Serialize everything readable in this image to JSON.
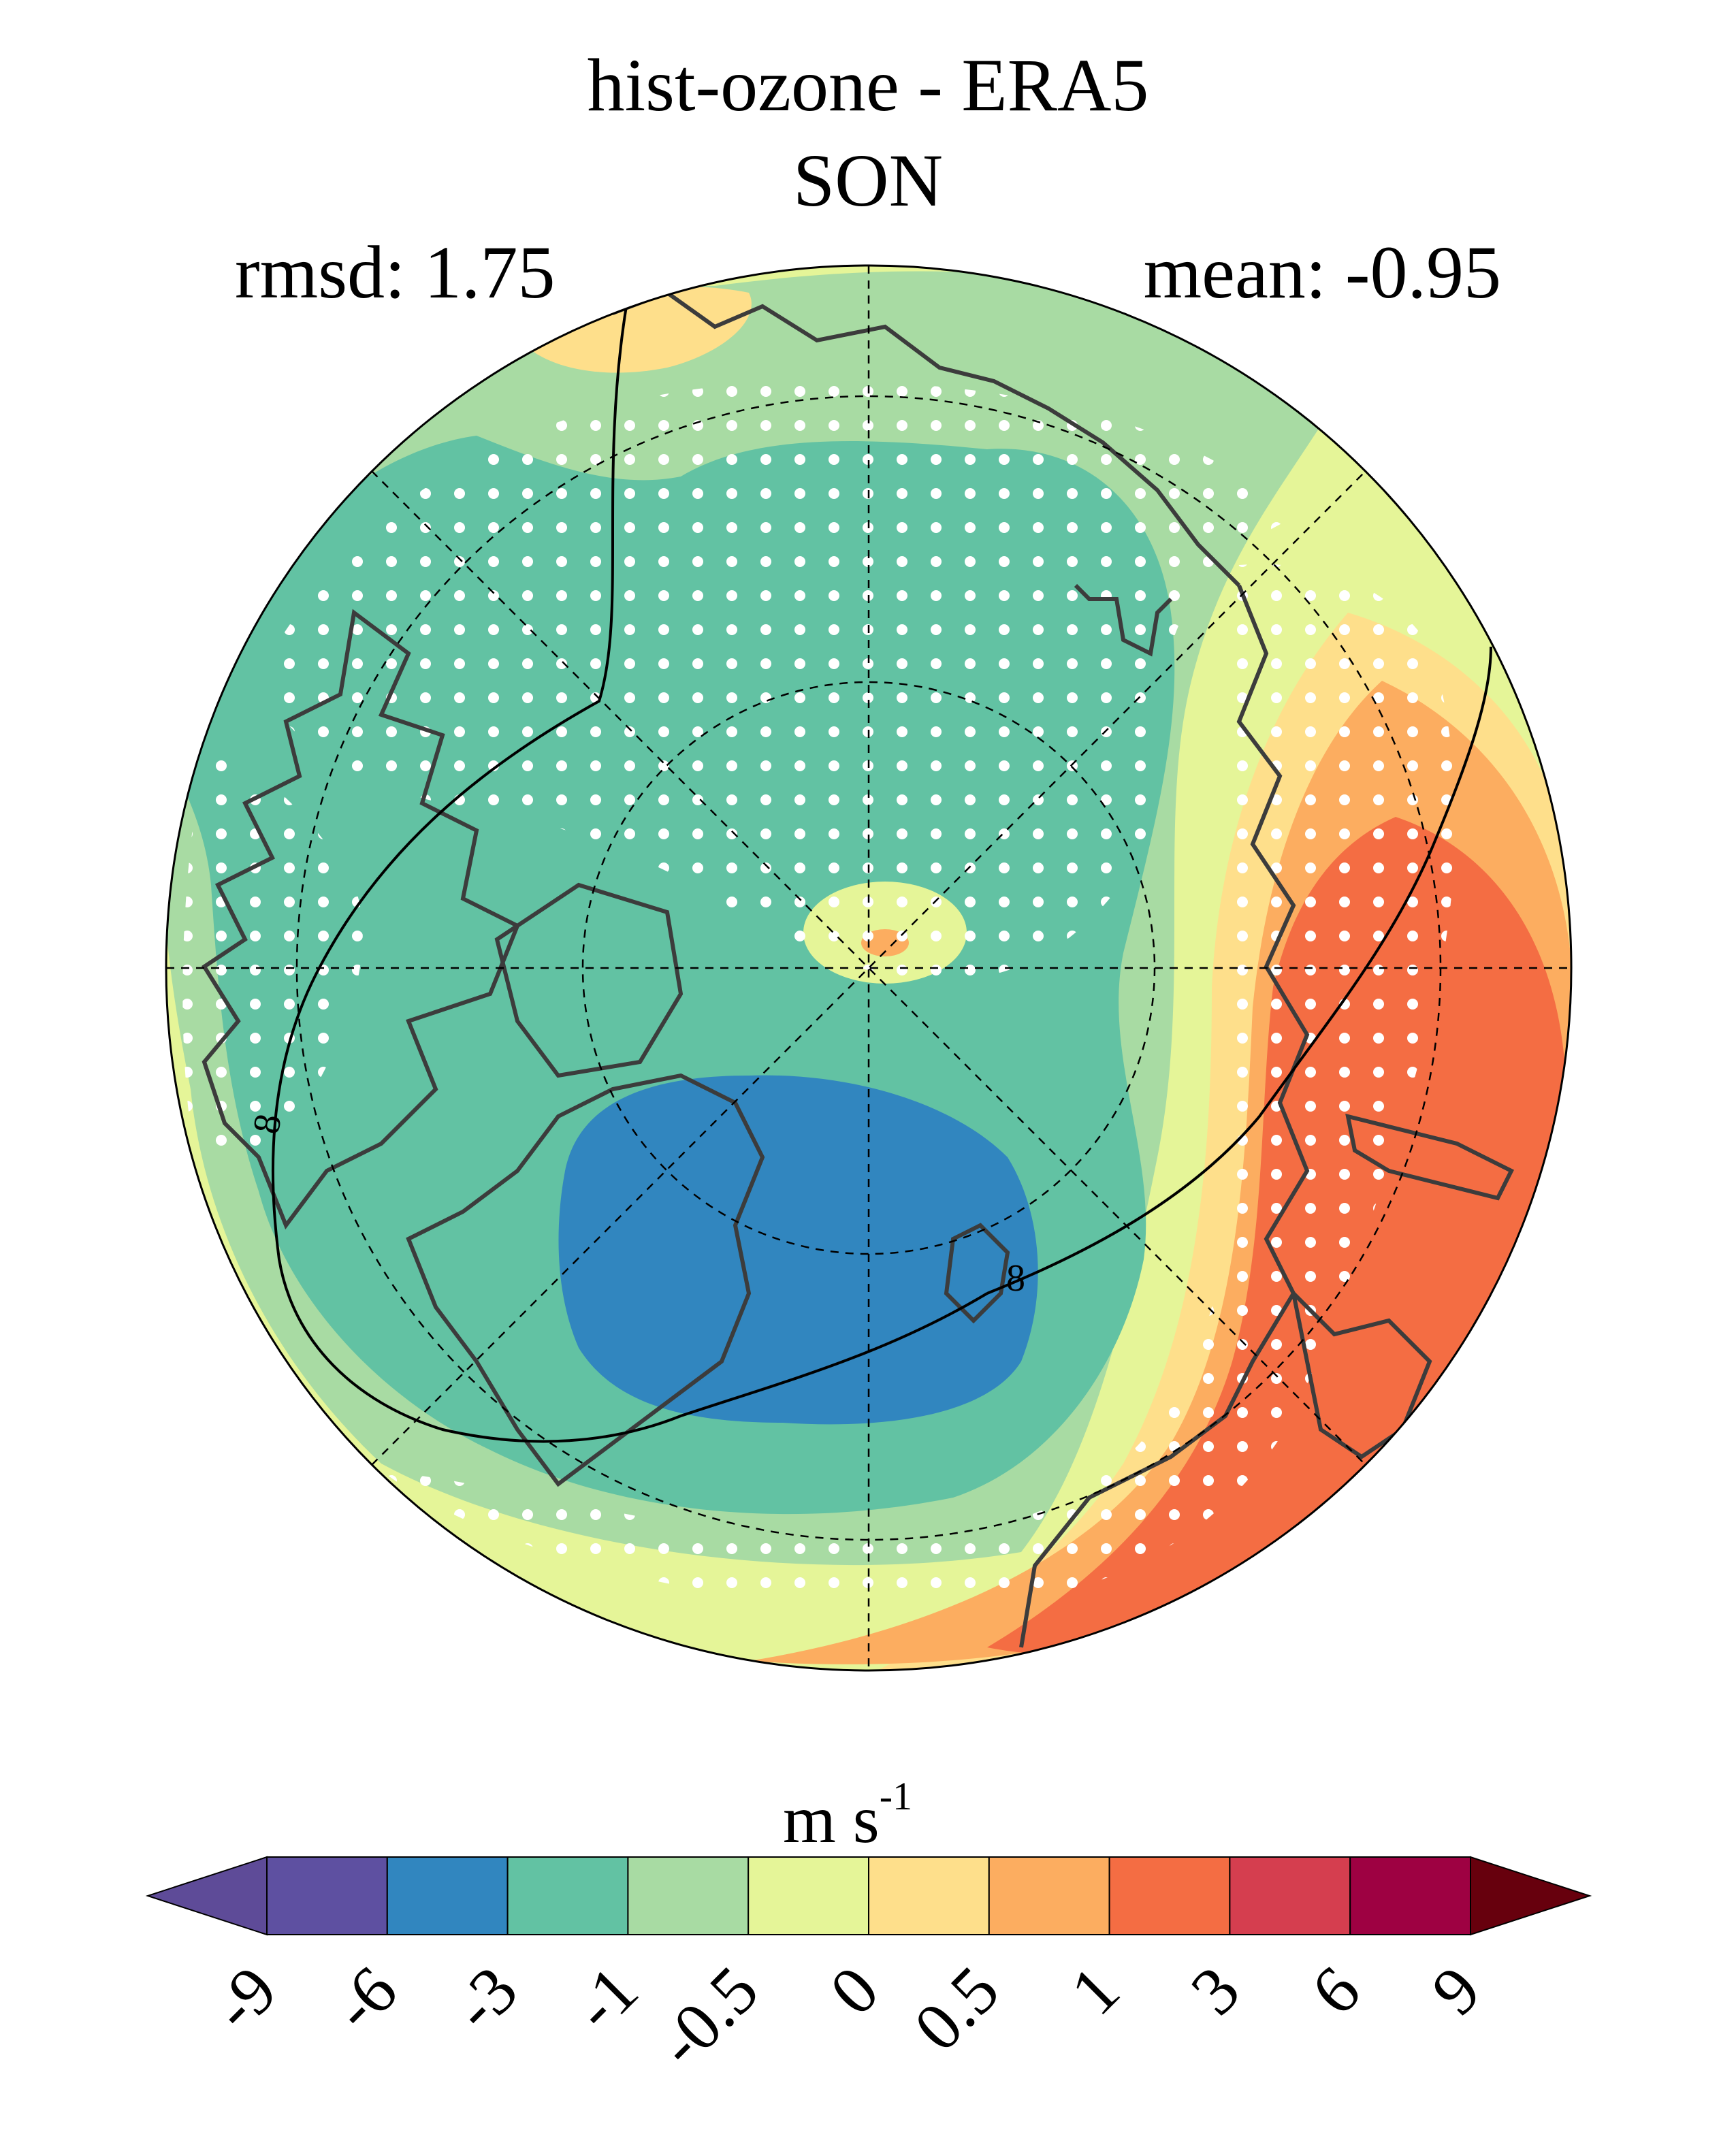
{
  "title": "hist-ozone - ERA5",
  "subtitle": "SON",
  "rmsd_text": "rmsd: 1.75",
  "mean_text": "mean: -0.95",
  "contour_label": "8",
  "colorbar": {
    "unit_base": "m s",
    "unit_exp": "-1",
    "ticks": [
      "-9",
      "-6",
      "-3",
      "-1",
      "-0.5",
      "0",
      "0.5",
      "1",
      "3",
      "6",
      "9"
    ],
    "colors": [
      "#5e4b98",
      "#5e50a1",
      "#3186bf",
      "#62c2a3",
      "#a8dba3",
      "#e5f598",
      "#fedf8b",
      "#fcad60",
      "#f46d43",
      "#d53e4f",
      "#9e0142",
      "#67000d"
    ]
  },
  "colors": {
    "field_green": "#62c2a3",
    "field_lightgreen": "#a8dba3",
    "field_yellowgreen": "#e5f598",
    "field_yellow": "#fedf8b",
    "field_orange": "#fcad60",
    "field_red": "#f46d43",
    "field_blue": "#3186bf",
    "stipple": "#ffffff",
    "coast": "#3c3c3c"
  }
}
